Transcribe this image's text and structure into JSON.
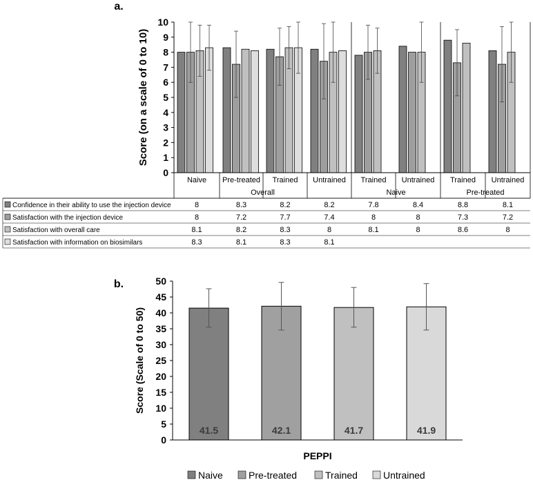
{
  "chart_data": [
    {
      "type": "bar",
      "panel_label": "a.",
      "ylabel": "Score  (on a scale of 0 to 10)",
      "ylim": [
        0,
        10
      ],
      "yticks": [
        0,
        1,
        2,
        3,
        4,
        5,
        6,
        7,
        8,
        9,
        10
      ],
      "grid": false,
      "legend": "table-below",
      "groups": [
        {
          "name": "Overall",
          "subgroups": [
            "Naive",
            "Pre-treated",
            "Trained",
            "Untrained"
          ]
        },
        {
          "name": "Naive",
          "subgroups": [
            "Trained",
            "Untrained"
          ]
        },
        {
          "name": "Pre-treated",
          "subgroups": [
            "Trained",
            "Untrained"
          ]
        }
      ],
      "categories": [
        "Naive",
        "Pre-treated",
        "Trained",
        "Untrained",
        "Trained",
        "Untrained",
        "Trained",
        "Untrained"
      ],
      "series": [
        {
          "name": "Confidence in their ability to use the injection device",
          "color": "#808080",
          "values": [
            8,
            8.3,
            8.2,
            8.2,
            7.8,
            8.4,
            8.8,
            8.1
          ],
          "labels": [
            "8",
            "8.3",
            "8.2",
            "8.2",
            "7.8",
            "8.4",
            "8.8",
            "8.1"
          ],
          "err_upper": [
            null,
            null,
            null,
            null,
            null,
            null,
            null,
            null
          ],
          "err_lower": [
            null,
            null,
            null,
            null,
            null,
            null,
            null,
            null
          ]
        },
        {
          "name": "Satisfaction with the injection device",
          "color": "#9e9e9e",
          "values": [
            8,
            7.2,
            7.7,
            7.4,
            8,
            8,
            7.3,
            7.2
          ],
          "labels": [
            "8",
            "7.2",
            "7.7",
            "7.4",
            "8",
            "8",
            "7.3",
            "7.2"
          ],
          "err_upper": [
            10,
            9.4,
            9.6,
            9.9,
            9.8,
            null,
            9.5,
            9.7
          ],
          "err_lower": [
            6,
            5,
            5.8,
            4.9,
            6.2,
            null,
            5.1,
            4.7
          ]
        },
        {
          "name": "Satisfaction with overall care",
          "color": "#c0c0c0",
          "values": [
            8.1,
            8.2,
            8.3,
            8,
            8.1,
            8,
            8.6,
            8
          ],
          "labels": [
            "8.1",
            "8.2",
            "8.3",
            "8",
            "8.1",
            "8",
            "8.6",
            "8"
          ],
          "err_upper": [
            9.8,
            null,
            9.7,
            10,
            9.6,
            10,
            null,
            10
          ],
          "err_lower": [
            6.4,
            null,
            6.9,
            6,
            6.6,
            6,
            null,
            6
          ]
        },
        {
          "name": "Satisfaction with information on biosimilars",
          "color": "#dedede",
          "values": [
            8.3,
            8.1,
            8.3,
            8.1,
            null,
            null,
            null,
            null
          ],
          "labels": [
            "8.3",
            "8.1",
            "8.3",
            "8.1",
            "",
            "",
            "",
            ""
          ],
          "err_upper": [
            9.8,
            null,
            10,
            null,
            null,
            null,
            null,
            null
          ],
          "err_lower": [
            6.8,
            null,
            6.6,
            null,
            null,
            null,
            null,
            null
          ]
        }
      ]
    },
    {
      "type": "bar",
      "panel_label": "b.",
      "ylabel": "Score (Scale of 0 to 50)",
      "xlabel": "PEPPI",
      "ylim": [
        0,
        50
      ],
      "yticks": [
        0,
        5,
        10,
        15,
        20,
        25,
        30,
        35,
        40,
        45,
        50
      ],
      "grid": false,
      "legend": "bottom",
      "series": [
        {
          "name": "Naive",
          "color": "#808080",
          "value": 41.5,
          "label": "41.5",
          "err": [
            35.5,
            47.6
          ]
        },
        {
          "name": "Pre-treated",
          "color": "#a0a0a0",
          "value": 42.1,
          "label": "42.1",
          "err": [
            34.6,
            49.6
          ]
        },
        {
          "name": "Trained",
          "color": "#c0c0c0",
          "value": 41.7,
          "label": "41.7",
          "err": [
            35.5,
            48
          ]
        },
        {
          "name": "Untrained",
          "color": "#d9d9d9",
          "value": 41.9,
          "label": "41.9",
          "err": [
            34.6,
            49.2
          ]
        }
      ]
    }
  ]
}
